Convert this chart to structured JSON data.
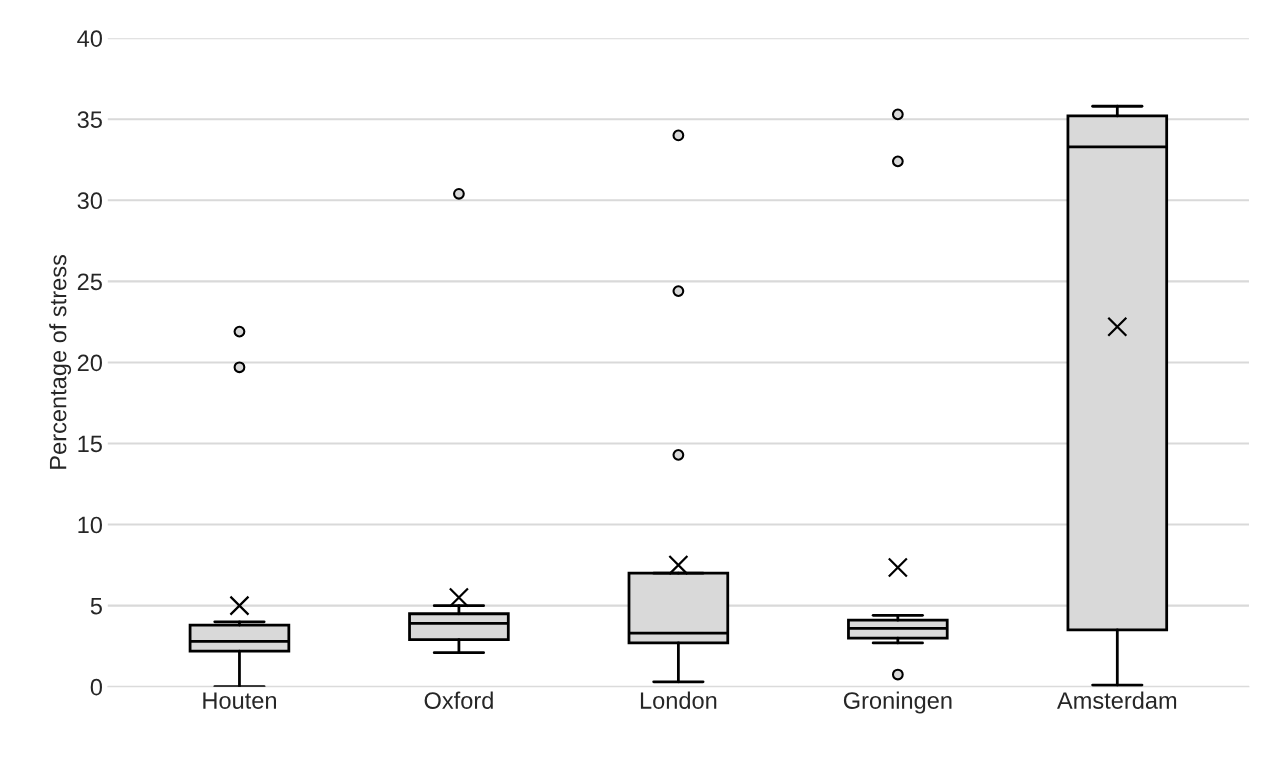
{
  "chart_data": {
    "type": "box",
    "ylabel": "Percentage of stress",
    "categories": [
      "Houten",
      "Oxford",
      "London",
      "Groningen",
      "Amsterdam"
    ],
    "boxes": [
      {
        "low": 0,
        "q1": 2.2,
        "median": 2.8,
        "q3": 3.8,
        "high": 4.0,
        "mean": 5.0,
        "outliers": [
          19.7,
          21.9
        ]
      },
      {
        "low": 2.1,
        "q1": 2.9,
        "median": 3.9,
        "q3": 4.5,
        "high": 5.0,
        "mean": 5.5,
        "outliers": [
          30.4
        ]
      },
      {
        "low": 0.3,
        "q1": 2.7,
        "median": 3.3,
        "q3": 7.0,
        "high": 7.0,
        "mean": 7.5,
        "outliers": [
          14.3,
          24.4,
          34.0
        ]
      },
      {
        "low": 2.7,
        "q1": 3.0,
        "median": 3.6,
        "q3": 4.1,
        "high": 4.4,
        "mean": 7.35,
        "outliers": [
          0.75,
          32.4,
          35.3
        ]
      },
      {
        "low": 0.1,
        "q1": 3.5,
        "median": 33.3,
        "q3": 35.2,
        "high": 35.8,
        "mean": 22.2
      }
    ],
    "color": "#d9d9d9",
    "ylim": [
      0,
      40
    ],
    "yticks": [
      0,
      5,
      10,
      15,
      20,
      25,
      30,
      35,
      40
    ],
    "grid": "y"
  }
}
